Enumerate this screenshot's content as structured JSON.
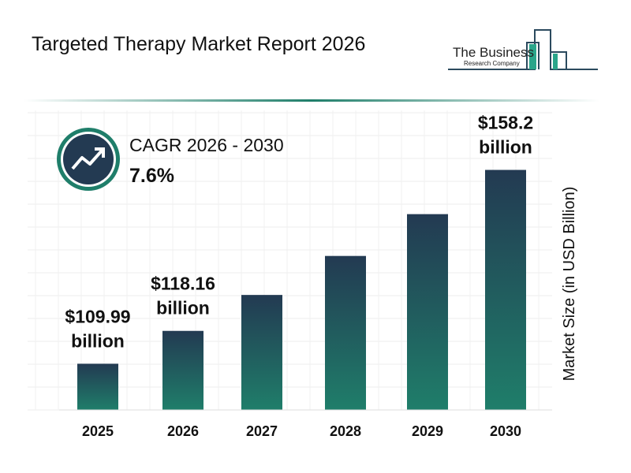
{
  "header": {
    "title": "Targeted Therapy Market Report 2026",
    "logo_text": "The Business Research Company"
  },
  "cagr": {
    "label": "CAGR 2026 - 2030",
    "value": "7.6%",
    "icon": "trend-up-icon"
  },
  "colors": {
    "bar_top": "#233a52",
    "bar_bottom": "#1f7e6a",
    "accent": "#1f7e6a"
  },
  "chart_data": {
    "type": "bar",
    "categories": [
      "2025",
      "2026",
      "2027",
      "2028",
      "2029",
      "2030"
    ],
    "values": [
      109.99,
      118.16,
      127.1,
      136.8,
      147.2,
      158.2
    ],
    "data_labels": [
      {
        "amount": "$109.99",
        "unit": "billion"
      },
      {
        "amount": "$118.16",
        "unit": "billion"
      },
      null,
      null,
      null,
      {
        "amount": "$158.2",
        "unit": "billion"
      }
    ],
    "ylabel": "Market Size (in USD Billion)",
    "grid": true
  }
}
